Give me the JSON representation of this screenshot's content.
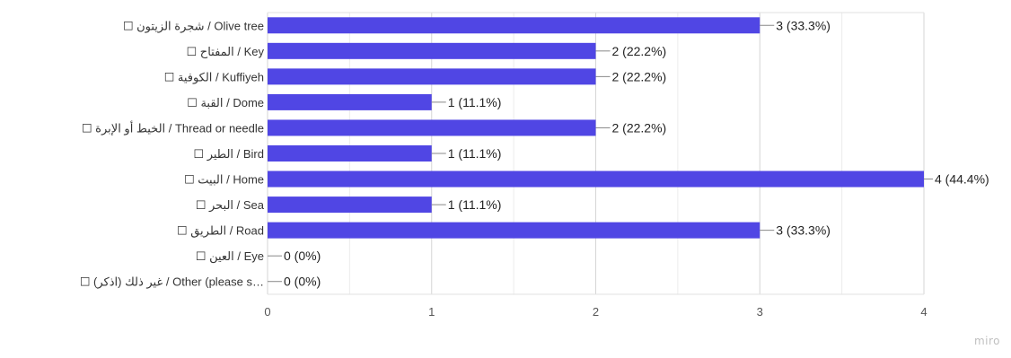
{
  "chart_data": {
    "type": "bar",
    "orientation": "horizontal",
    "categories": [
      "☐ شجرة الزيتون / Olive tree",
      "☐ المفتاح / Key",
      "☐ الكوفية / Kuffiyeh",
      "☐ القبة / Dome",
      "☐ الخيط أو الإبرة / Thread or needle",
      "☐ الطير / Bird",
      "☐ البيت / Home",
      "☐ البحر / Sea",
      "☐ الطريق / Road",
      "☐ العين / Eye",
      "☐ غير ذلك (اذكر) / Other (please s…"
    ],
    "values": [
      3,
      2,
      2,
      1,
      2,
      1,
      4,
      1,
      3,
      0,
      0
    ],
    "data_labels": [
      "3 (33.3%)",
      "2 (22.2%)",
      "2 (22.2%)",
      "1 (11.1%)",
      "2 (22.2%)",
      "1 (11.1%)",
      "4 (44.4%)",
      "1 (11.1%)",
      "3 (33.3%)",
      "0 (0%)",
      "0 (0%)"
    ],
    "xlim": [
      0,
      4
    ],
    "x_ticks": [
      "0",
      "1",
      "2",
      "3",
      "4"
    ],
    "grid": true,
    "bar_color": "#5046e4",
    "title": "",
    "xlabel": "",
    "ylabel": ""
  },
  "watermark": "miro"
}
